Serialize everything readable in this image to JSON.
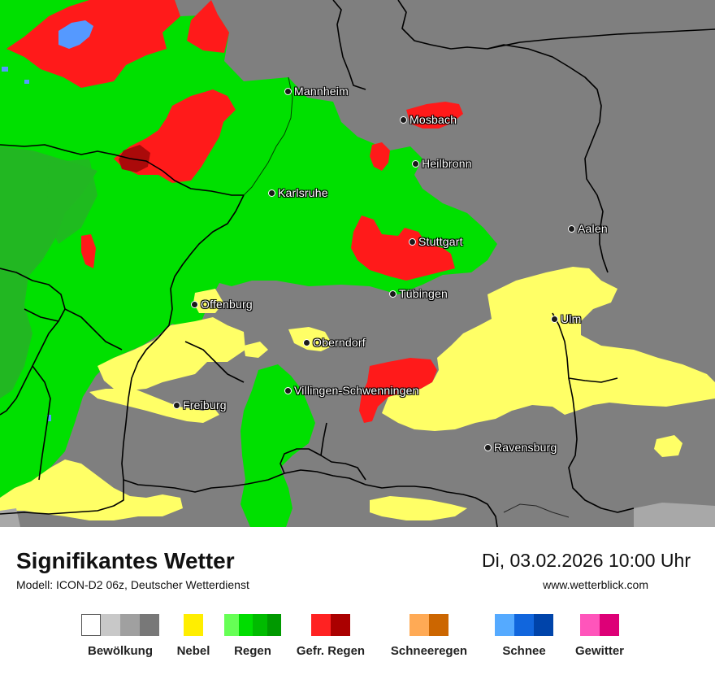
{
  "map": {
    "cities": [
      {
        "name": "Mannheim"
      },
      {
        "name": "Mosbach"
      },
      {
        "name": "Heilbronn"
      },
      {
        "name": "Karlsruhe"
      },
      {
        "name": "Aalen"
      },
      {
        "name": "Stuttgart"
      },
      {
        "name": "Tübingen"
      },
      {
        "name": "Offenburg"
      },
      {
        "name": "Ulm"
      },
      {
        "name": "Oberndorf"
      },
      {
        "name": "Villingen-Schwenningen"
      },
      {
        "name": "Freiburg"
      },
      {
        "name": "Ravensburg"
      }
    ],
    "colors": {
      "background": "#7f7f7f",
      "fog": "#ffff66",
      "rain": "#00e000",
      "rain_dark": "#22b722",
      "freezing_rain": "#ff1a1a",
      "freezing_rain_dark": "#aa0a0a",
      "snow": "#5599ff",
      "borders": "#000000"
    }
  },
  "footer": {
    "title": "Signifikantes Wetter",
    "model": "Modell: ICON-D2 06z, Deutscher Wetterdienst",
    "datetime": "Di, 03.02.2026 10:00 Uhr",
    "website": "www.wetterblick.com"
  },
  "legend": [
    {
      "label": "Bewölkung",
      "colors": [
        "#ffffff",
        "#c8c8c8",
        "#a0a0a0",
        "#787878"
      ]
    },
    {
      "label": "Nebel",
      "colors": [
        "#ffee00"
      ]
    },
    {
      "label": "Regen",
      "colors": [
        "#66ff55",
        "#00dd00",
        "#00bb00",
        "#009900"
      ]
    },
    {
      "label": "Gefr. Regen",
      "colors": [
        "#ff2222",
        "#aa0000"
      ]
    },
    {
      "label": "Schneeregen",
      "colors": [
        "#ffaa55",
        "#cc6600"
      ]
    },
    {
      "label": "Schnee",
      "colors": [
        "#55aaff",
        "#1166dd",
        "#0044aa"
      ]
    },
    {
      "label": "Gewitter",
      "colors": [
        "#ff55bb",
        "#dd0077"
      ]
    }
  ]
}
